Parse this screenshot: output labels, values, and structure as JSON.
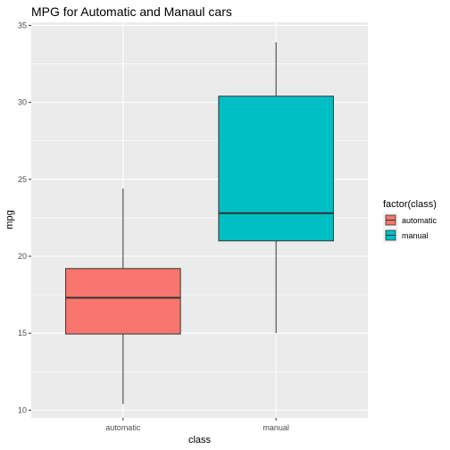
{
  "chart_data": {
    "type": "boxplot",
    "title": "MPG for Automatic and Manaul cars",
    "xlabel": "class",
    "ylabel": "mpg",
    "ylim": [
      9.5,
      35.2
    ],
    "yticks": [
      10,
      15,
      20,
      25,
      30,
      35
    ],
    "categories": [
      "automatic",
      "manual"
    ],
    "boxes": [
      {
        "category": "automatic",
        "whisker_low": 10.4,
        "q1": 14.95,
        "median": 17.3,
        "q3": 19.2,
        "whisker_high": 24.4,
        "fill": "#F8766D"
      },
      {
        "category": "manual",
        "whisker_low": 15.0,
        "q1": 21.0,
        "median": 22.8,
        "q3": 30.4,
        "whisker_high": 33.9,
        "fill": "#00BFC4"
      }
    ],
    "legend": {
      "title": "factor(class)",
      "position": "right",
      "entries": [
        {
          "label": "automatic",
          "color": "#F8766D"
        },
        {
          "label": "manual",
          "color": "#00BFC4"
        }
      ]
    },
    "grid": true,
    "panel_background": "#EBEBEB"
  }
}
